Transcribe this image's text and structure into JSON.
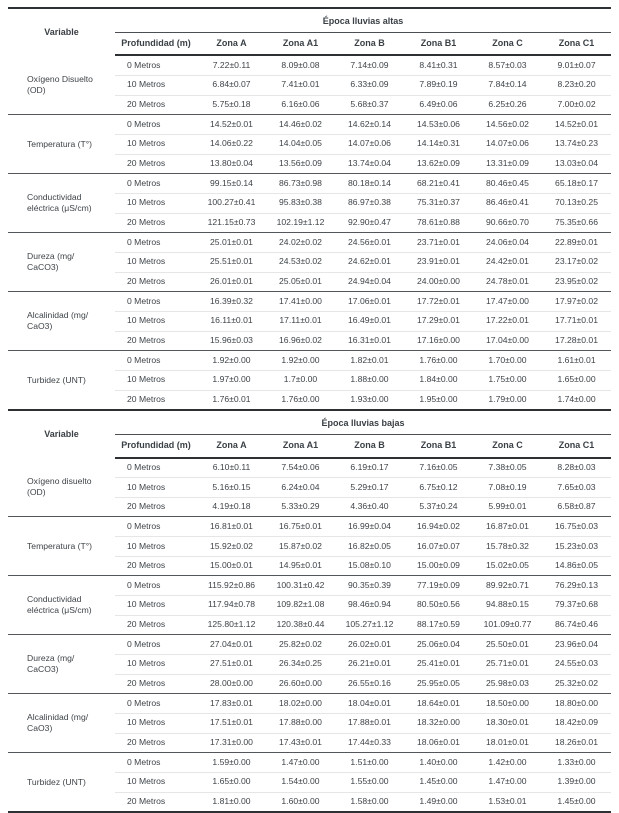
{
  "table": {
    "variable_header": "Variable",
    "profundidad_header": "Profundidad (m)",
    "zones": [
      "Zona A",
      "Zona A1",
      "Zona B",
      "Zona B1",
      "Zona C",
      "Zona C1"
    ],
    "sections": [
      {
        "title": "Época lluvias altas",
        "groups": [
          {
            "variable": "Oxígeno Disuelto (OD)",
            "rows": [
              {
                "depth": "0 Metros",
                "values": [
                  "7.22±0.11",
                  "8.09±0.08",
                  "7.14±0.09",
                  "8.41±0.31",
                  "8.57±0.03",
                  "9.01±0.07"
                ]
              },
              {
                "depth": "10 Metros",
                "values": [
                  "6.84±0.07",
                  "7.41±0.01",
                  "6.33±0.09",
                  "7.89±0.19",
                  "7.84±0.14",
                  "8.23±0.20"
                ]
              },
              {
                "depth": "20 Metros",
                "values": [
                  "5.75±0.18",
                  "6.16±0.06",
                  "5.68±0.37",
                  "6.49±0.06",
                  "6.25±0.26",
                  "7.00±0.02"
                ]
              }
            ]
          },
          {
            "variable": "Temperatura (T°)",
            "rows": [
              {
                "depth": "0 Metros",
                "values": [
                  "14.52±0.01",
                  "14.46±0.02",
                  "14.62±0.14",
                  "14.53±0.06",
                  "14.56±0.02",
                  "14.52±0.01"
                ]
              },
              {
                "depth": "10 Metros",
                "values": [
                  "14.06±0.22",
                  "14.04±0.05",
                  "14.07±0.06",
                  "14.14±0.31",
                  "14.07±0.06",
                  "13.74±0.23"
                ]
              },
              {
                "depth": "20 Metros",
                "values": [
                  "13.80±0.04",
                  "13.56±0.09",
                  "13.74±0.04",
                  "13.62±0.09",
                  "13.31±0.09",
                  "13.03±0.04"
                ]
              }
            ]
          },
          {
            "variable": "Conductividad eléctrica (μS/cm)",
            "rows": [
              {
                "depth": "0 Metros",
                "values": [
                  "99.15±0.14",
                  "86.73±0.98",
                  "80.18±0.14",
                  "68.21±0.41",
                  "80.46±0.45",
                  "65.18±0.17"
                ]
              },
              {
                "depth": "10 Metros",
                "values": [
                  "100.27±0.41",
                  "95.83±0.38",
                  "86.97±0.38",
                  "75.31±0.37",
                  "86.46±0.41",
                  "70.13±0.25"
                ]
              },
              {
                "depth": "20 Metros",
                "values": [
                  "121.15±0.73",
                  "102.19±1.12",
                  "92.90±0.47",
                  "78.61±0.88",
                  "90.66±0.70",
                  "75.35±0.66"
                ]
              }
            ]
          },
          {
            "variable": "Dureza (mg/ CaCO3)",
            "rows": [
              {
                "depth": "0 Metros",
                "values": [
                  "25.01±0.01",
                  "24.02±0.02",
                  "24.56±0.01",
                  "23.71±0.01",
                  "24.06±0.04",
                  "22.89±0.01"
                ]
              },
              {
                "depth": "10 Metros",
                "values": [
                  "25.51±0.01",
                  "24.53±0.02",
                  "24.62±0.01",
                  "23.91±0.01",
                  "24.42±0.01",
                  "23.17±0.02"
                ]
              },
              {
                "depth": "20 Metros",
                "values": [
                  "26.01±0.01",
                  "25.05±0.01",
                  "24.94±0.04",
                  "24.00±0.00",
                  "24.78±0.01",
                  "23.95±0.02"
                ]
              }
            ]
          },
          {
            "variable": "Alcalinidad (mg/ CaO3)",
            "rows": [
              {
                "depth": "0 Metros",
                "values": [
                  "16.39±0.32",
                  "17.41±0.00",
                  "17.06±0.01",
                  "17.72±0.01",
                  "17.47±0.00",
                  "17.97±0.02"
                ]
              },
              {
                "depth": "10 Metros",
                "values": [
                  "16.11±0.01",
                  "17.11±0.01",
                  "16.49±0.01",
                  "17.29±0.01",
                  "17.22±0.01",
                  "17.71±0.01"
                ]
              },
              {
                "depth": "20 Metros",
                "values": [
                  "15.96±0.03",
                  "16.96±0.02",
                  "16.31±0.01",
                  "17.16±0.00",
                  "17.04±0.00",
                  "17.28±0.01"
                ]
              }
            ]
          },
          {
            "variable": "Turbidez (UNT)",
            "rows": [
              {
                "depth": "0 Metros",
                "values": [
                  "1.92±0.00",
                  "1.92±0.00",
                  "1.82±0.01",
                  "1.76±0.00",
                  "1.70±0.00",
                  "1.61±0.01"
                ]
              },
              {
                "depth": "10 Metros",
                "values": [
                  "1.97±0.00",
                  "1.7±0.00",
                  "1.88±0.00",
                  "1.84±0.00",
                  "1.75±0.00",
                  "1.65±0.00"
                ]
              },
              {
                "depth": "20 Metros",
                "values": [
                  "1.76±0.01",
                  "1.76±0.00",
                  "1.93±0.00",
                  "1.95±0.00",
                  "1.79±0.00",
                  "1.74±0.00"
                ]
              }
            ]
          }
        ]
      },
      {
        "title": "Época lluvias bajas",
        "groups": [
          {
            "variable": "Oxígeno disuelto (OD)",
            "rows": [
              {
                "depth": "0 Metros",
                "values": [
                  "6.10±0.11",
                  "7.54±0.06",
                  "6.19±0.17",
                  "7.16±0.05",
                  "7.38±0.05",
                  "8.28±0.03"
                ]
              },
              {
                "depth": "10 Metros",
                "values": [
                  "5.16±0.15",
                  "6.24±0.04",
                  "5.29±0.17",
                  "6.75±0.12",
                  "7.08±0.19",
                  "7.65±0.03"
                ]
              },
              {
                "depth": "20 Metros",
                "values": [
                  "4.19±0.18",
                  "5.33±0.29",
                  "4.36±0.40",
                  "5.37±0.24",
                  "5.99±0.01",
                  "6.58±0.87"
                ]
              }
            ]
          },
          {
            "variable": "Temperatura (T°)",
            "rows": [
              {
                "depth": "0 Metros",
                "values": [
                  "16.81±0.01",
                  "16.75±0.01",
                  "16.99±0.04",
                  "16.94±0.02",
                  "16.87±0.01",
                  "16.75±0.03"
                ]
              },
              {
                "depth": "10 Metros",
                "values": [
                  "15.92±0.02",
                  "15.87±0.02",
                  "16.82±0.05",
                  "16.07±0.07",
                  "15.78±0.32",
                  "15.23±0.03"
                ]
              },
              {
                "depth": "20 Metros",
                "values": [
                  "15.00±0.01",
                  "14.95±0.01",
                  "15.08±0.10",
                  "15.00±0.09",
                  "15.02±0.05",
                  "14.86±0.05"
                ]
              }
            ]
          },
          {
            "variable": "Conductividad eléctrica (μS/cm)",
            "rows": [
              {
                "depth": "0 Metros",
                "values": [
                  "115.92±0.86",
                  "100.31±0.42",
                  "90.35±0.39",
                  "77.19±0.09",
                  "89.92±0.71",
                  "76.29±0.13"
                ]
              },
              {
                "depth": "10 Metros",
                "values": [
                  "117.94±0.78",
                  "109.82±1.08",
                  "98.46±0.94",
                  "80.50±0.56",
                  "94.88±0.15",
                  "79.37±0.68"
                ]
              },
              {
                "depth": "20 Metros",
                "values": [
                  "125.80±1.12",
                  "120.38±0.44",
                  "105.27±1.12",
                  "88.17±0.59",
                  "101.09±0.77",
                  "86.74±0.46"
                ]
              }
            ]
          },
          {
            "variable": "Dureza (mg/ CaCO3)",
            "rows": [
              {
                "depth": "0 Metros",
                "values": [
                  "27.04±0.01",
                  "25.82±0.02",
                  "26.02±0.01",
                  "25.06±0.04",
                  "25.50±0.01",
                  "23.96±0.04"
                ]
              },
              {
                "depth": "10 Metros",
                "values": [
                  "27.51±0.01",
                  "26.34±0.25",
                  "26.21±0.01",
                  "25.41±0.01",
                  "25.71±0.01",
                  "24.55±0.03"
                ]
              },
              {
                "depth": "20 Metros",
                "values": [
                  "28.00±0.00",
                  "26.60±0.00",
                  "26.55±0.16",
                  "25.95±0.05",
                  "25.98±0.03",
                  "25.32±0.02"
                ]
              }
            ]
          },
          {
            "variable": "Alcalinidad (mg/ CaO3)",
            "rows": [
              {
                "depth": "0 Metros",
                "values": [
                  "17.83±0.01",
                  "18.02±0.00",
                  "18.04±0.01",
                  "18.64±0.01",
                  "18.50±0.00",
                  "18.80±0.00"
                ]
              },
              {
                "depth": "10 Metros",
                "values": [
                  "17.51±0.01",
                  "17.88±0.00",
                  "17.88±0.01",
                  "18.32±0.00",
                  "18.30±0.01",
                  "18.42±0.09"
                ]
              },
              {
                "depth": "20 Metros",
                "values": [
                  "17.31±0.00",
                  "17.43±0.01",
                  "17.44±0.33",
                  "18.06±0.01",
                  "18.01±0.01",
                  "18.26±0.01"
                ]
              }
            ]
          },
          {
            "variable": "Turbidez (UNT)",
            "rows": [
              {
                "depth": "0 Metros",
                "values": [
                  "1.59±0.00",
                  "1.47±0.00",
                  "1.51±0.00",
                  "1.40±0.00",
                  "1.42±0.00",
                  "1.33±0.00"
                ]
              },
              {
                "depth": "10 Metros",
                "values": [
                  "1.65±0.00",
                  "1.54±0.00",
                  "1.55±0.00",
                  "1.45±0.00",
                  "1.47±0.00",
                  "1.39±0.00"
                ]
              },
              {
                "depth": "20 Metros",
                "values": [
                  "1.81±0.00",
                  "1.60±0.00",
                  "1.58±0.00",
                  "1.49±0.00",
                  "1.53±0.01",
                  "1.45±0.00"
                ]
              }
            ]
          }
        ]
      }
    ]
  }
}
